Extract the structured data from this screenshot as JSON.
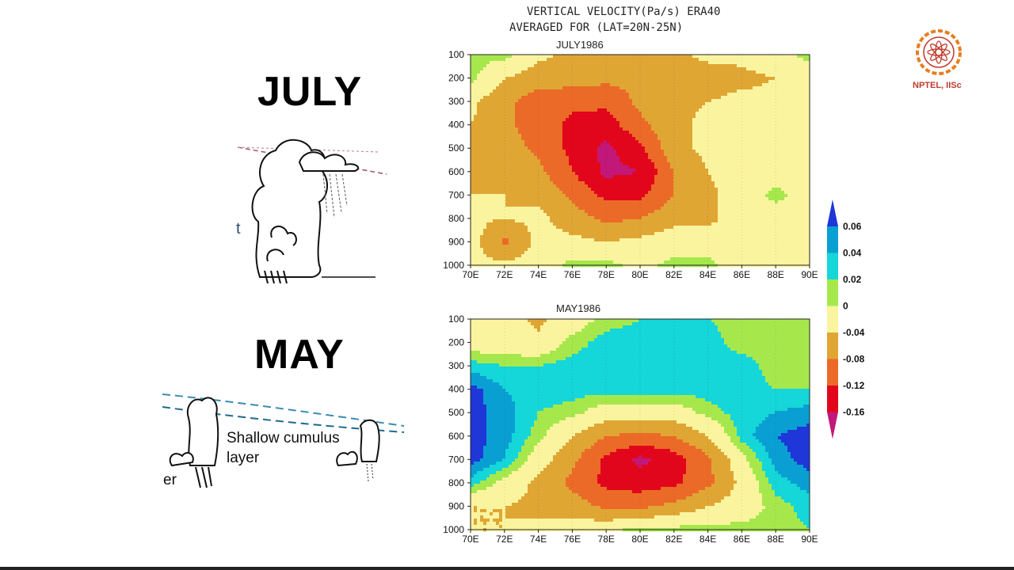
{
  "title_line1": "VERTICAL VELOCITY(Pa/s) ERA40",
  "title_line2": "AVERAGED FOR (LAT=20N-25N)",
  "logo_text": "NPTEL, IISc",
  "left": {
    "july_label": "JULY",
    "may_label": "MAY",
    "july_fragment": "t",
    "shallow_label_1": "Shallow cumulus",
    "shallow_label_2": "layer",
    "may_fragment": "er"
  },
  "chart_data": [
    {
      "type": "heatmap",
      "title": "JULY1986",
      "x": [
        "70E",
        "72E",
        "74E",
        "76E",
        "78E",
        "80E",
        "82E",
        "84E",
        "86E",
        "88E",
        "90E"
      ],
      "y": [
        100,
        200,
        300,
        400,
        500,
        600,
        700,
        800,
        900,
        1000
      ],
      "ylim": [
        1000,
        100
      ],
      "z": [
        [
          0.01,
          0.01,
          -0.03,
          -0.05,
          -0.05,
          -0.05,
          -0.05,
          -0.03,
          -0.03,
          -0.01,
          0.01
        ],
        [
          0.01,
          -0.04,
          -0.06,
          -0.06,
          -0.07,
          -0.07,
          -0.06,
          -0.06,
          -0.05,
          -0.04,
          -0.02
        ],
        [
          -0.03,
          -0.07,
          -0.1,
          -0.11,
          -0.11,
          -0.07,
          -0.05,
          -0.04,
          -0.03,
          -0.03,
          -0.03
        ],
        [
          -0.04,
          -0.07,
          -0.1,
          -0.13,
          -0.14,
          -0.09,
          -0.05,
          -0.03,
          -0.03,
          -0.02,
          -0.03
        ],
        [
          -0.05,
          -0.06,
          -0.09,
          -0.13,
          -0.17,
          -0.13,
          -0.05,
          -0.03,
          -0.02,
          -0.02,
          -0.02
        ],
        [
          -0.04,
          -0.05,
          -0.07,
          -0.12,
          -0.17,
          -0.16,
          -0.08,
          -0.04,
          -0.02,
          -0.02,
          -0.02
        ],
        [
          -0.04,
          -0.04,
          -0.05,
          -0.09,
          -0.13,
          -0.13,
          -0.08,
          -0.05,
          -0.02,
          0.01,
          -0.02
        ],
        [
          -0.03,
          -0.04,
          -0.03,
          -0.06,
          -0.09,
          -0.08,
          -0.05,
          -0.05,
          -0.02,
          -0.02,
          -0.02
        ],
        [
          -0.02,
          -0.09,
          -0.03,
          -0.03,
          -0.04,
          -0.03,
          -0.02,
          -0.02,
          -0.02,
          -0.02,
          -0.02
        ],
        [
          -0.03,
          -0.03,
          -0.02,
          0.01,
          0.01,
          -0.01,
          0.01,
          0.01,
          -0.02,
          -0.02,
          -0.02
        ]
      ]
    },
    {
      "type": "heatmap",
      "title": "MAY1986",
      "x": [
        "70E",
        "72E",
        "74E",
        "76E",
        "78E",
        "80E",
        "82E",
        "84E",
        "86E",
        "88E",
        "90E"
      ],
      "y": [
        100,
        200,
        300,
        400,
        500,
        600,
        700,
        800,
        900,
        1000
      ],
      "ylim": [
        1000,
        100
      ],
      "z": [
        [
          -0.02,
          -0.02,
          -0.05,
          -0.02,
          0.01,
          0.02,
          0.02,
          0.02,
          0.01,
          0.01,
          0.02
        ],
        [
          -0.02,
          -0.02,
          -0.03,
          0.01,
          0.03,
          0.03,
          0.03,
          0.03,
          0.01,
          0.01,
          0.02
        ],
        [
          0.03,
          0.02,
          0.02,
          0.03,
          0.03,
          0.03,
          0.03,
          0.03,
          0.03,
          0.01,
          0.01
        ],
        [
          0.07,
          0.04,
          0.03,
          0.03,
          0.03,
          0.03,
          0.03,
          0.03,
          0.03,
          0.02,
          0.02
        ],
        [
          0.07,
          0.05,
          0.02,
          0.01,
          -0.02,
          -0.02,
          -0.02,
          0.01,
          0.03,
          0.04,
          0.05
        ],
        [
          0.07,
          0.05,
          0.01,
          -0.04,
          -0.08,
          -0.09,
          -0.08,
          -0.04,
          0.03,
          0.06,
          0.07
        ],
        [
          0.07,
          0.04,
          -0.02,
          -0.07,
          -0.13,
          -0.17,
          -0.14,
          -0.09,
          -0.01,
          0.05,
          0.07
        ],
        [
          0.03,
          -0.01,
          -0.05,
          -0.09,
          -0.13,
          -0.14,
          -0.13,
          -0.09,
          -0.03,
          0.03,
          0.05
        ],
        [
          -0.04,
          -0.04,
          -0.05,
          -0.06,
          -0.09,
          -0.09,
          -0.07,
          -0.04,
          -0.02,
          0.01,
          0.03
        ],
        [
          -0.04,
          -0.04,
          -0.03,
          -0.02,
          -0.01,
          0.01,
          0.01,
          0.01,
          0.01,
          0.01,
          0.02
        ]
      ]
    }
  ],
  "colorbar": {
    "labels": [
      "0.06",
      "0.04",
      "0.02",
      "0",
      "-0.04",
      "-0.08",
      "-0.12",
      "-0.16"
    ],
    "levels": [
      -0.16,
      -0.12,
      -0.08,
      -0.04,
      0,
      0.02,
      0.04,
      0.06
    ],
    "colors": [
      "#c2187a",
      "#e2061c",
      "#ec6a27",
      "#e0a634",
      "#fbf49f",
      "#a6e84c",
      "#15d6d8",
      "#0a9fd3",
      "#1f36d8"
    ]
  }
}
